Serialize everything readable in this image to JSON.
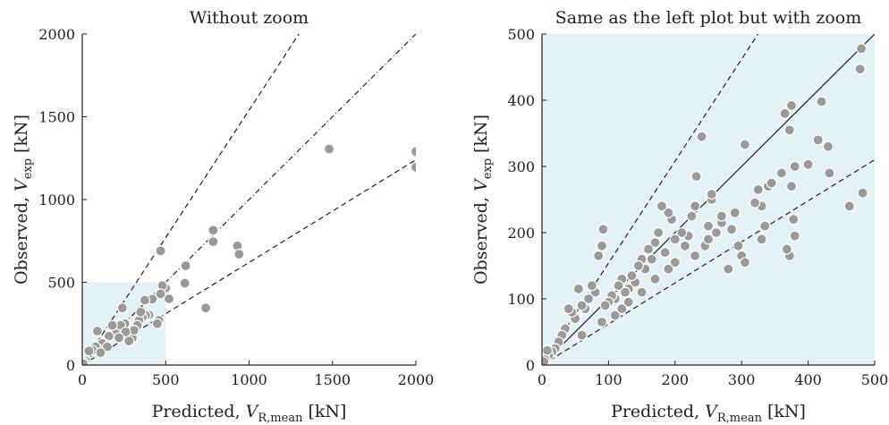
{
  "chart_data": [
    {
      "type": "scatter",
      "title": "Without zoom",
      "xlabel": {
        "prefix": "Predicted,",
        "symbol": "V",
        "subscript": "R,mean",
        "unit": "[kN]"
      },
      "ylabel": {
        "prefix": "Observed,",
        "symbol": "V",
        "subscript": "exp",
        "unit": "[kN]"
      },
      "xlim": [
        0,
        2000
      ],
      "ylim": [
        0,
        2000
      ],
      "xticks": [
        0,
        500,
        1000,
        1500,
        2000
      ],
      "yticks": [
        0,
        500,
        1000,
        1500,
        2000
      ],
      "color": "#9a9a9a",
      "zoom_box": [
        0,
        500,
        0,
        500
      ],
      "zoom_color": "#e4f1f6",
      "reference_lines": [
        {
          "slope": 1.54,
          "style": "dashed"
        },
        {
          "slope": 1,
          "style": "dashdot"
        },
        {
          "slope": 0.62,
          "style": "dashed"
        }
      ],
      "x": [
        2000,
        2000,
        1480,
        785,
        785,
        930,
        940,
        740,
        620,
        615,
        500,
        520,
        470,
        480,
        470,
        460,
        450,
        420,
        400,
        380,
        375,
        360,
        340,
        330,
        300,
        280,
        255,
        240,
        230,
        200,
        180,
        160,
        140,
        120,
        100,
        90,
        80,
        60,
        40,
        20,
        10,
        5,
        350,
        310,
        260,
        220,
        150,
        110
      ],
      "values": [
        1290,
        1195,
        1305,
        815,
        745,
        720,
        670,
        345,
        600,
        495,
        465,
        400,
        690,
        480,
        430,
        270,
        250,
        398,
        303,
        300,
        392,
        290,
        270,
        240,
        165,
        145,
        250,
        345,
        240,
        190,
        240,
        175,
        125,
        130,
        95,
        205,
        110,
        90,
        85,
        25,
        15,
        8,
        320,
        210,
        200,
        165,
        110,
        75
      ]
    },
    {
      "type": "scatter",
      "title": "Same as the left plot but with zoom",
      "xlabel": {
        "prefix": "Predicted,",
        "symbol": "V",
        "subscript": "R,mean",
        "unit": "[kN]"
      },
      "ylabel": {
        "prefix": "Observed,",
        "symbol": "V",
        "subscript": "exp",
        "unit": "[kN]"
      },
      "xlim": [
        0,
        500
      ],
      "ylim": [
        0,
        500
      ],
      "xticks": [
        0,
        100,
        200,
        300,
        400,
        500
      ],
      "yticks": [
        0,
        100,
        200,
        300,
        400,
        500
      ],
      "color": "#9a9a9a",
      "background": "#e4f1f6",
      "reference_lines": [
        {
          "slope": 1.54,
          "style": "dashed"
        },
        {
          "slope": 1,
          "style": "solid"
        },
        {
          "slope": 0.62,
          "style": "dashed"
        }
      ],
      "x": [
        480,
        478,
        482,
        462,
        420,
        415,
        430,
        432,
        400,
        380,
        375,
        372,
        365,
        360,
        375,
        378,
        372,
        368,
        380,
        340,
        345,
        330,
        335,
        330,
        320,
        325,
        305,
        300,
        305,
        295,
        280,
        285,
        270,
        262,
        255,
        255,
        250,
        245,
        240,
        232,
        230,
        225,
        220,
        215,
        210,
        200,
        195,
        190,
        185,
        180,
        175,
        170,
        165,
        160,
        155,
        150,
        145,
        140,
        135,
        130,
        125,
        120,
        115,
        110,
        105,
        100,
        95,
        92,
        90,
        85,
        80,
        75,
        70,
        65,
        60,
        55,
        50,
        45,
        40,
        35,
        30,
        25,
        20,
        15,
        10,
        8,
        5,
        3,
        110,
        130,
        150,
        170,
        190,
        120,
        90,
        60,
        200,
        230,
        250,
        270,
        290
      ],
      "values": [
        478,
        447,
        260,
        240,
        398,
        340,
        330,
        290,
        303,
        300,
        392,
        355,
        380,
        290,
        270,
        220,
        165,
        175,
        195,
        270,
        275,
        240,
        210,
        190,
        245,
        265,
        333,
        165,
        155,
        180,
        145,
        205,
        215,
        200,
        250,
        258,
        210,
        180,
        345,
        285,
        240,
        225,
        195,
        180,
        200,
        190,
        220,
        230,
        170,
        240,
        200,
        185,
        160,
        175,
        145,
        160,
        150,
        125,
        135,
        115,
        110,
        130,
        120,
        100,
        105,
        95,
        90,
        205,
        180,
        165,
        110,
        120,
        100,
        85,
        90,
        115,
        70,
        80,
        85,
        55,
        45,
        35,
        25,
        20,
        15,
        22,
        8,
        5,
        75,
        95,
        110,
        130,
        145,
        85,
        65,
        45,
        155,
        165,
        190,
        225,
        230
      ]
    }
  ]
}
